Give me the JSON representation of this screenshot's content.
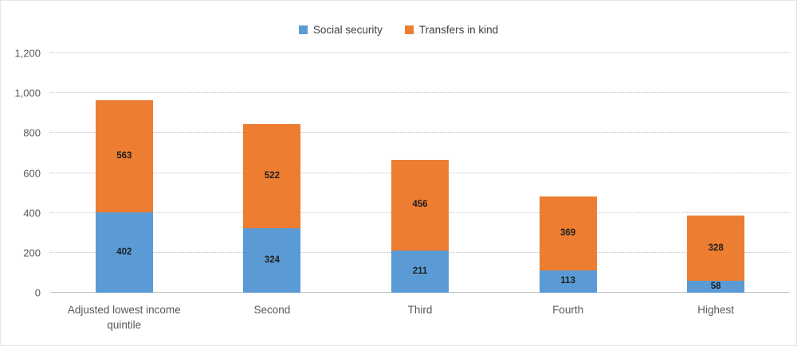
{
  "chart_data": {
    "type": "bar",
    "stacked": true,
    "title": "",
    "categories": [
      "Adjusted lowest income quintile",
      "Second",
      "Third",
      "Fourth",
      "Highest"
    ],
    "series": [
      {
        "name": "Social security",
        "color": "#5B9BD5",
        "values": [
          402,
          324,
          211,
          113,
          58
        ]
      },
      {
        "name": "Transfers in kind",
        "color": "#ED7D31",
        "values": [
          563,
          522,
          456,
          369,
          328
        ]
      }
    ],
    "ylim": [
      0,
      1200
    ],
    "ytick_step": 200,
    "yticks": [
      "0",
      "200",
      "400",
      "600",
      "800",
      "1,000",
      "1,200"
    ],
    "legend_position": "top",
    "grid": "dotted-horizontal",
    "axis_text_color": "#595959",
    "gridline_color": "#c2c2c2",
    "data_label_color": "#1f1f1f"
  }
}
